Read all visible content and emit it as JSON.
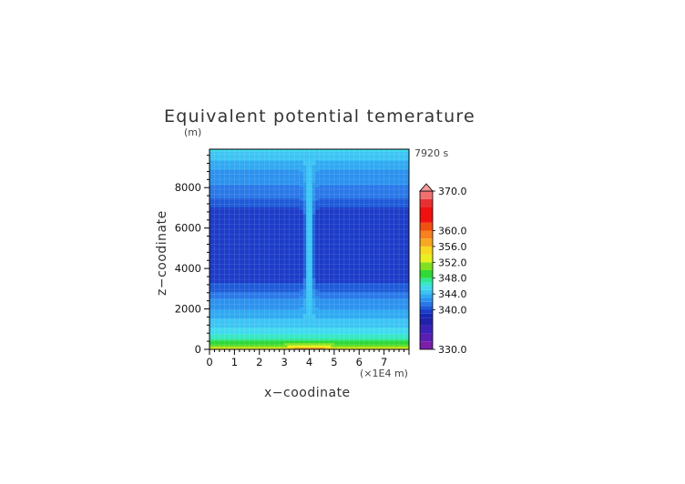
{
  "chart_data": {
    "type": "heatmap",
    "title": "Equivalent potential temerature",
    "xlabel": "x−coodinate",
    "ylabel": "z−coodinate",
    "y_unit": "(m)",
    "x_unit": "(×1E4 m)",
    "time_label": "7920 s",
    "x_ticks": [
      "0",
      "1",
      "2",
      "3",
      "4",
      "5",
      "6",
      "7"
    ],
    "y_ticks": [
      "0",
      "2000",
      "4000",
      "6000",
      "8000"
    ],
    "xlim": [
      0,
      8
    ],
    "ylim": [
      0,
      9900
    ],
    "colorbar": {
      "labels": [
        "330.0",
        "340.0",
        "344.0",
        "348.0",
        "352.0",
        "356.0",
        "360.0",
        "370.0"
      ],
      "label_values": [
        330,
        340,
        344,
        348,
        352,
        356,
        360,
        370
      ],
      "range": [
        330,
        370
      ]
    },
    "z_profile": [
      {
        "z": 0,
        "value": 354
      },
      {
        "z": 150,
        "value": 350.5
      },
      {
        "z": 400,
        "value": 348
      },
      {
        "z": 800,
        "value": 346
      },
      {
        "z": 1300,
        "value": 344.5
      },
      {
        "z": 1900,
        "value": 343.2
      },
      {
        "z": 2500,
        "value": 342.2
      },
      {
        "z": 3000,
        "value": 340.6
      },
      {
        "z": 3600,
        "value": 339.2
      },
      {
        "z": 6600,
        "value": 339.2
      },
      {
        "z": 7200,
        "value": 340.3
      },
      {
        "z": 7700,
        "value": 341.6
      },
      {
        "z": 8400,
        "value": 342.3
      },
      {
        "z": 9000,
        "value": 343.2
      },
      {
        "z": 9500,
        "value": 344.3
      },
      {
        "z": 9900,
        "value": 345.3
      }
    ],
    "plume": {
      "x_center": 4.0,
      "value": 345,
      "surface_max": 360
    }
  }
}
